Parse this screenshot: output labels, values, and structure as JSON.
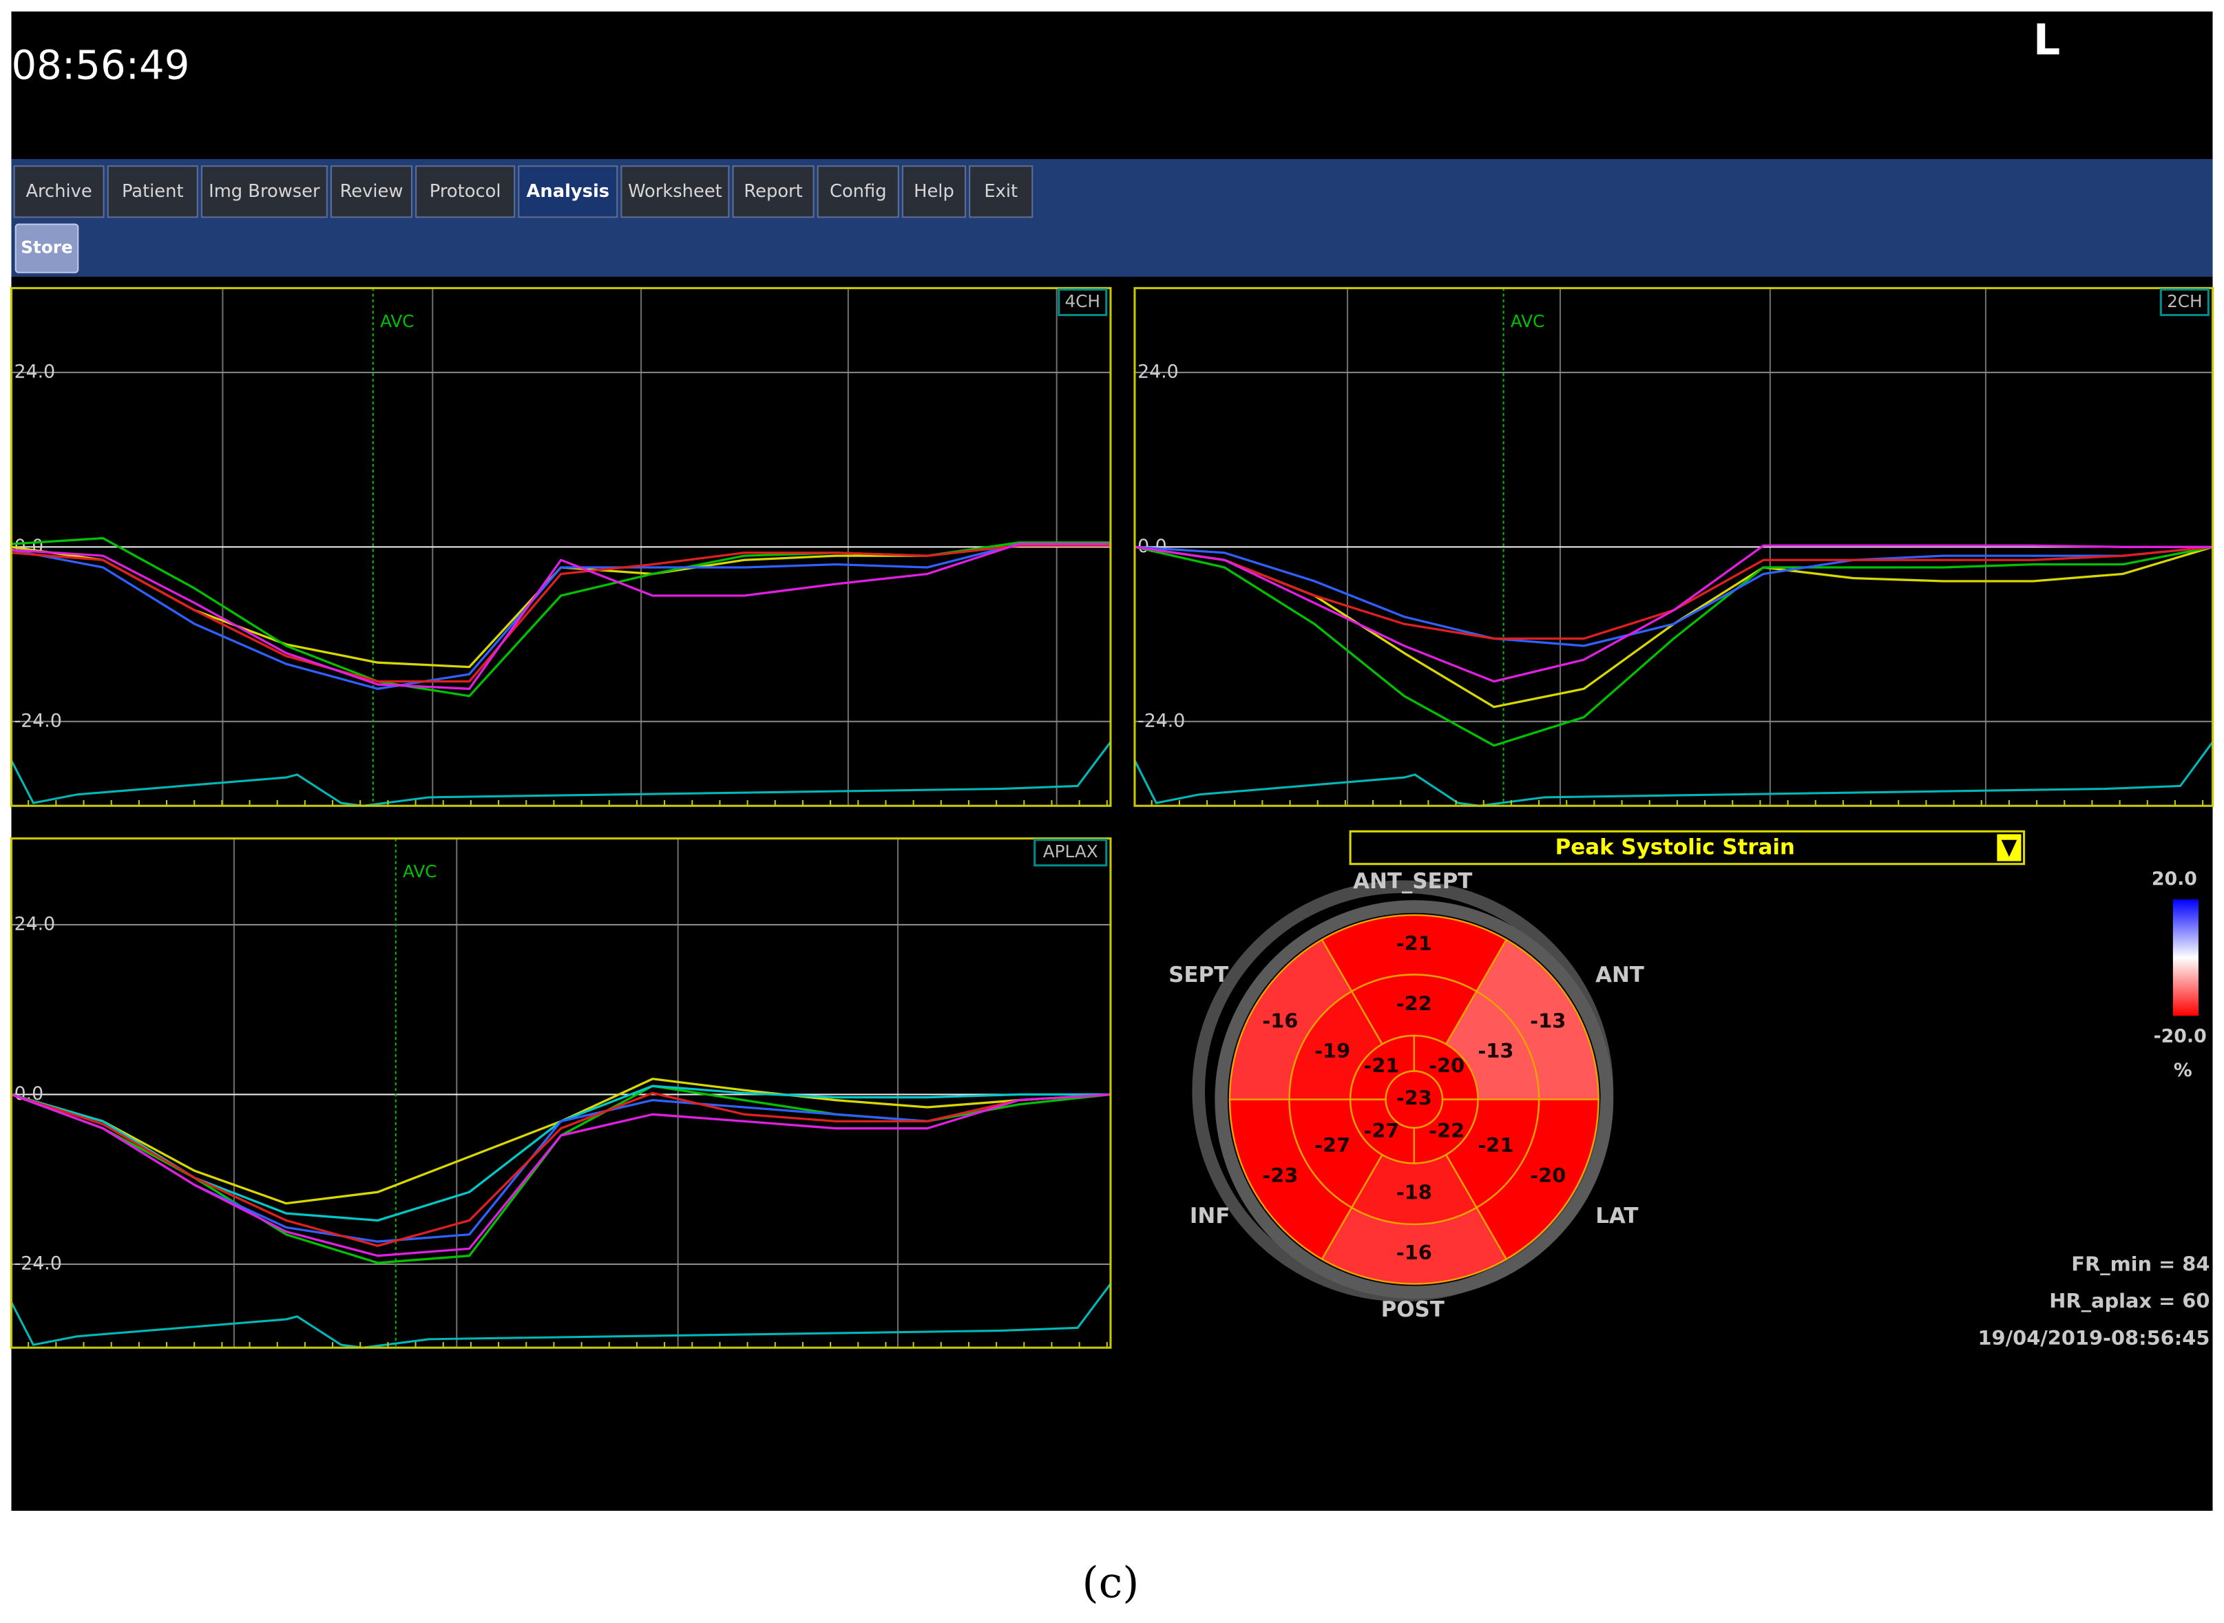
{
  "header": {
    "clock": "08:56:49",
    "orientation": "L"
  },
  "tabs": [
    "Archive",
    "Patient",
    "Img Browser",
    "Review",
    "Protocol",
    "Analysis",
    "Worksheet",
    "Report",
    "Config",
    "Help",
    "Exit"
  ],
  "active_tab": 5,
  "toolbar": {
    "store": "Store"
  },
  "panels": [
    {
      "label": "4CH",
      "marker": "AVC",
      "ylim": [
        -35.6,
        35.6
      ],
      "yticks": [
        {
          "value": 24,
          "label": "24.0"
        },
        {
          "value": 0,
          "label": "0.0"
        },
        {
          "value": -24,
          "label": "-24.0"
        }
      ],
      "series": [
        {
          "color": "#d8d800",
          "values": [
            0,
            -1.8,
            -8.7,
            -13.4,
            -15.9,
            -16.5,
            -2.8,
            -3.7,
            -1.8,
            -1.2,
            -1.2,
            0.2,
            0.2
          ]
        },
        {
          "color": "#00c000",
          "values": [
            0.4,
            1.2,
            -5.7,
            -13.6,
            -18.5,
            -20.5,
            -6.7,
            -3.7,
            -1.2,
            -0.8,
            -1.2,
            0.6,
            0.6
          ]
        },
        {
          "color": "#3060ff",
          "values": [
            -0.4,
            -2.8,
            -10.6,
            -16.1,
            -19.5,
            -17.5,
            -2.8,
            -2.8,
            -2.8,
            -2.4,
            -2.8,
            0.4,
            0.4
          ]
        },
        {
          "color": "#e02020",
          "values": [
            -0.8,
            -1.8,
            -8.7,
            -15,
            -18.5,
            -18.5,
            -3.7,
            -2.4,
            -0.8,
            -0.8,
            -1.2,
            0.2,
            0.2
          ]
        },
        {
          "color": "#e020e0",
          "values": [
            -0.4,
            -1.2,
            -7.7,
            -14.6,
            -18.9,
            -19.5,
            -1.8,
            -6.7,
            -6.7,
            -5.1,
            -3.7,
            0.4,
            0.4
          ]
        }
      ]
    },
    {
      "label": "2CH",
      "marker": "AVC",
      "ylim": [
        -35.6,
        35.6
      ],
      "yticks": [
        {
          "value": 24,
          "label": "24.0"
        },
        {
          "value": 0,
          "label": "0.0"
        },
        {
          "value": -24,
          "label": "-24.0"
        }
      ],
      "series": [
        {
          "color": "#d8d800",
          "values": [
            0,
            -1.8,
            -6.7,
            -14.6,
            -22,
            -19.5,
            -10.6,
            -2.8,
            -4.3,
            -4.7,
            -4.7,
            -3.7,
            0
          ]
        },
        {
          "color": "#00c000",
          "values": [
            0,
            -2.8,
            -10.6,
            -20.5,
            -27.3,
            -23.4,
            -12.6,
            -2.8,
            -2.8,
            -2.8,
            -2.4,
            -2.4,
            0
          ]
        },
        {
          "color": "#3060ff",
          "values": [
            0,
            -0.8,
            -4.7,
            -9.6,
            -12.6,
            -13.6,
            -10.6,
            -3.7,
            -1.8,
            -1.2,
            -1.2,
            -1.2,
            0
          ]
        },
        {
          "color": "#e02020",
          "values": [
            0,
            -1.8,
            -6.7,
            -10.6,
            -12.6,
            -12.6,
            -8.7,
            -1.8,
            -1.8,
            -1.8,
            -1.8,
            -1.2,
            0
          ]
        },
        {
          "color": "#e020e0",
          "values": [
            0,
            -1.8,
            -7.7,
            -13.6,
            -18.5,
            -15.5,
            -8.7,
            0.2,
            0.2,
            0.2,
            0.2,
            0,
            0
          ]
        }
      ]
    },
    {
      "label": "APLAX",
      "marker": "AVC",
      "ylim": [
        -35.8,
        36.2
      ],
      "yticks": [
        {
          "value": 24,
          "label": "24.0"
        },
        {
          "value": 0,
          "label": "0.0"
        },
        {
          "value": -24,
          "label": "-24.0"
        }
      ],
      "series": [
        {
          "color": "#d8d800",
          "values": [
            0,
            -3.8,
            -10.8,
            -15.4,
            -13.8,
            -8.8,
            -3.8,
            2.2,
            0.6,
            -0.8,
            -1.8,
            -0.8,
            0
          ]
        },
        {
          "color": "#00c000",
          "values": [
            0,
            -4.8,
            -11.8,
            -19.8,
            -23.8,
            -22.8,
            -5.8,
            1.2,
            -0.8,
            -2.8,
            -3.8,
            -1.4,
            0
          ]
        },
        {
          "color": "#00c8c8",
          "values": [
            0,
            -3.8,
            -11.8,
            -16.8,
            -17.8,
            -13.8,
            -3.8,
            1.2,
            0.2,
            -0.4,
            -0.4,
            0,
            0
          ]
        },
        {
          "color": "#3060ff",
          "values": [
            0,
            -4.8,
            -12.8,
            -18.8,
            -20.8,
            -19.8,
            -3.8,
            -0.8,
            -1.8,
            -2.8,
            -3.8,
            -0.8,
            0
          ]
        },
        {
          "color": "#e02020",
          "values": [
            0,
            -4.2,
            -11.8,
            -17.8,
            -21.4,
            -17.8,
            -4.8,
            0.2,
            -2.8,
            -3.8,
            -3.8,
            -0.8,
            0
          ]
        },
        {
          "color": "#e020e0",
          "values": [
            0,
            -4.8,
            -12.8,
            -19.4,
            -22.8,
            -21.8,
            -5.8,
            -2.8,
            -3.8,
            -4.8,
            -4.8,
            -0.8,
            0
          ]
        }
      ]
    }
  ],
  "bullseye": {
    "title": "Peak Systolic Strain",
    "walls": [
      "ANT_SEPT",
      "ANT",
      "LAT",
      "POST",
      "INF",
      "SEPT"
    ],
    "outer": [
      -21,
      -13,
      -20,
      -16,
      -23,
      -16
    ],
    "middle": [
      -22,
      -13,
      -21,
      -18,
      -27,
      -19
    ],
    "inner": [
      -20,
      -22,
      -27,
      -21
    ],
    "apex": -23
  },
  "colorbar": {
    "max": {
      "value": 20,
      "label": "20.0"
    },
    "min": {
      "value": -20,
      "label": "-20.0"
    },
    "unit": "%"
  },
  "info": [
    "FR_min = 84",
    "HR_aplax = 60",
    "19/04/2019-08:56:45"
  ],
  "caption": "(c)"
}
